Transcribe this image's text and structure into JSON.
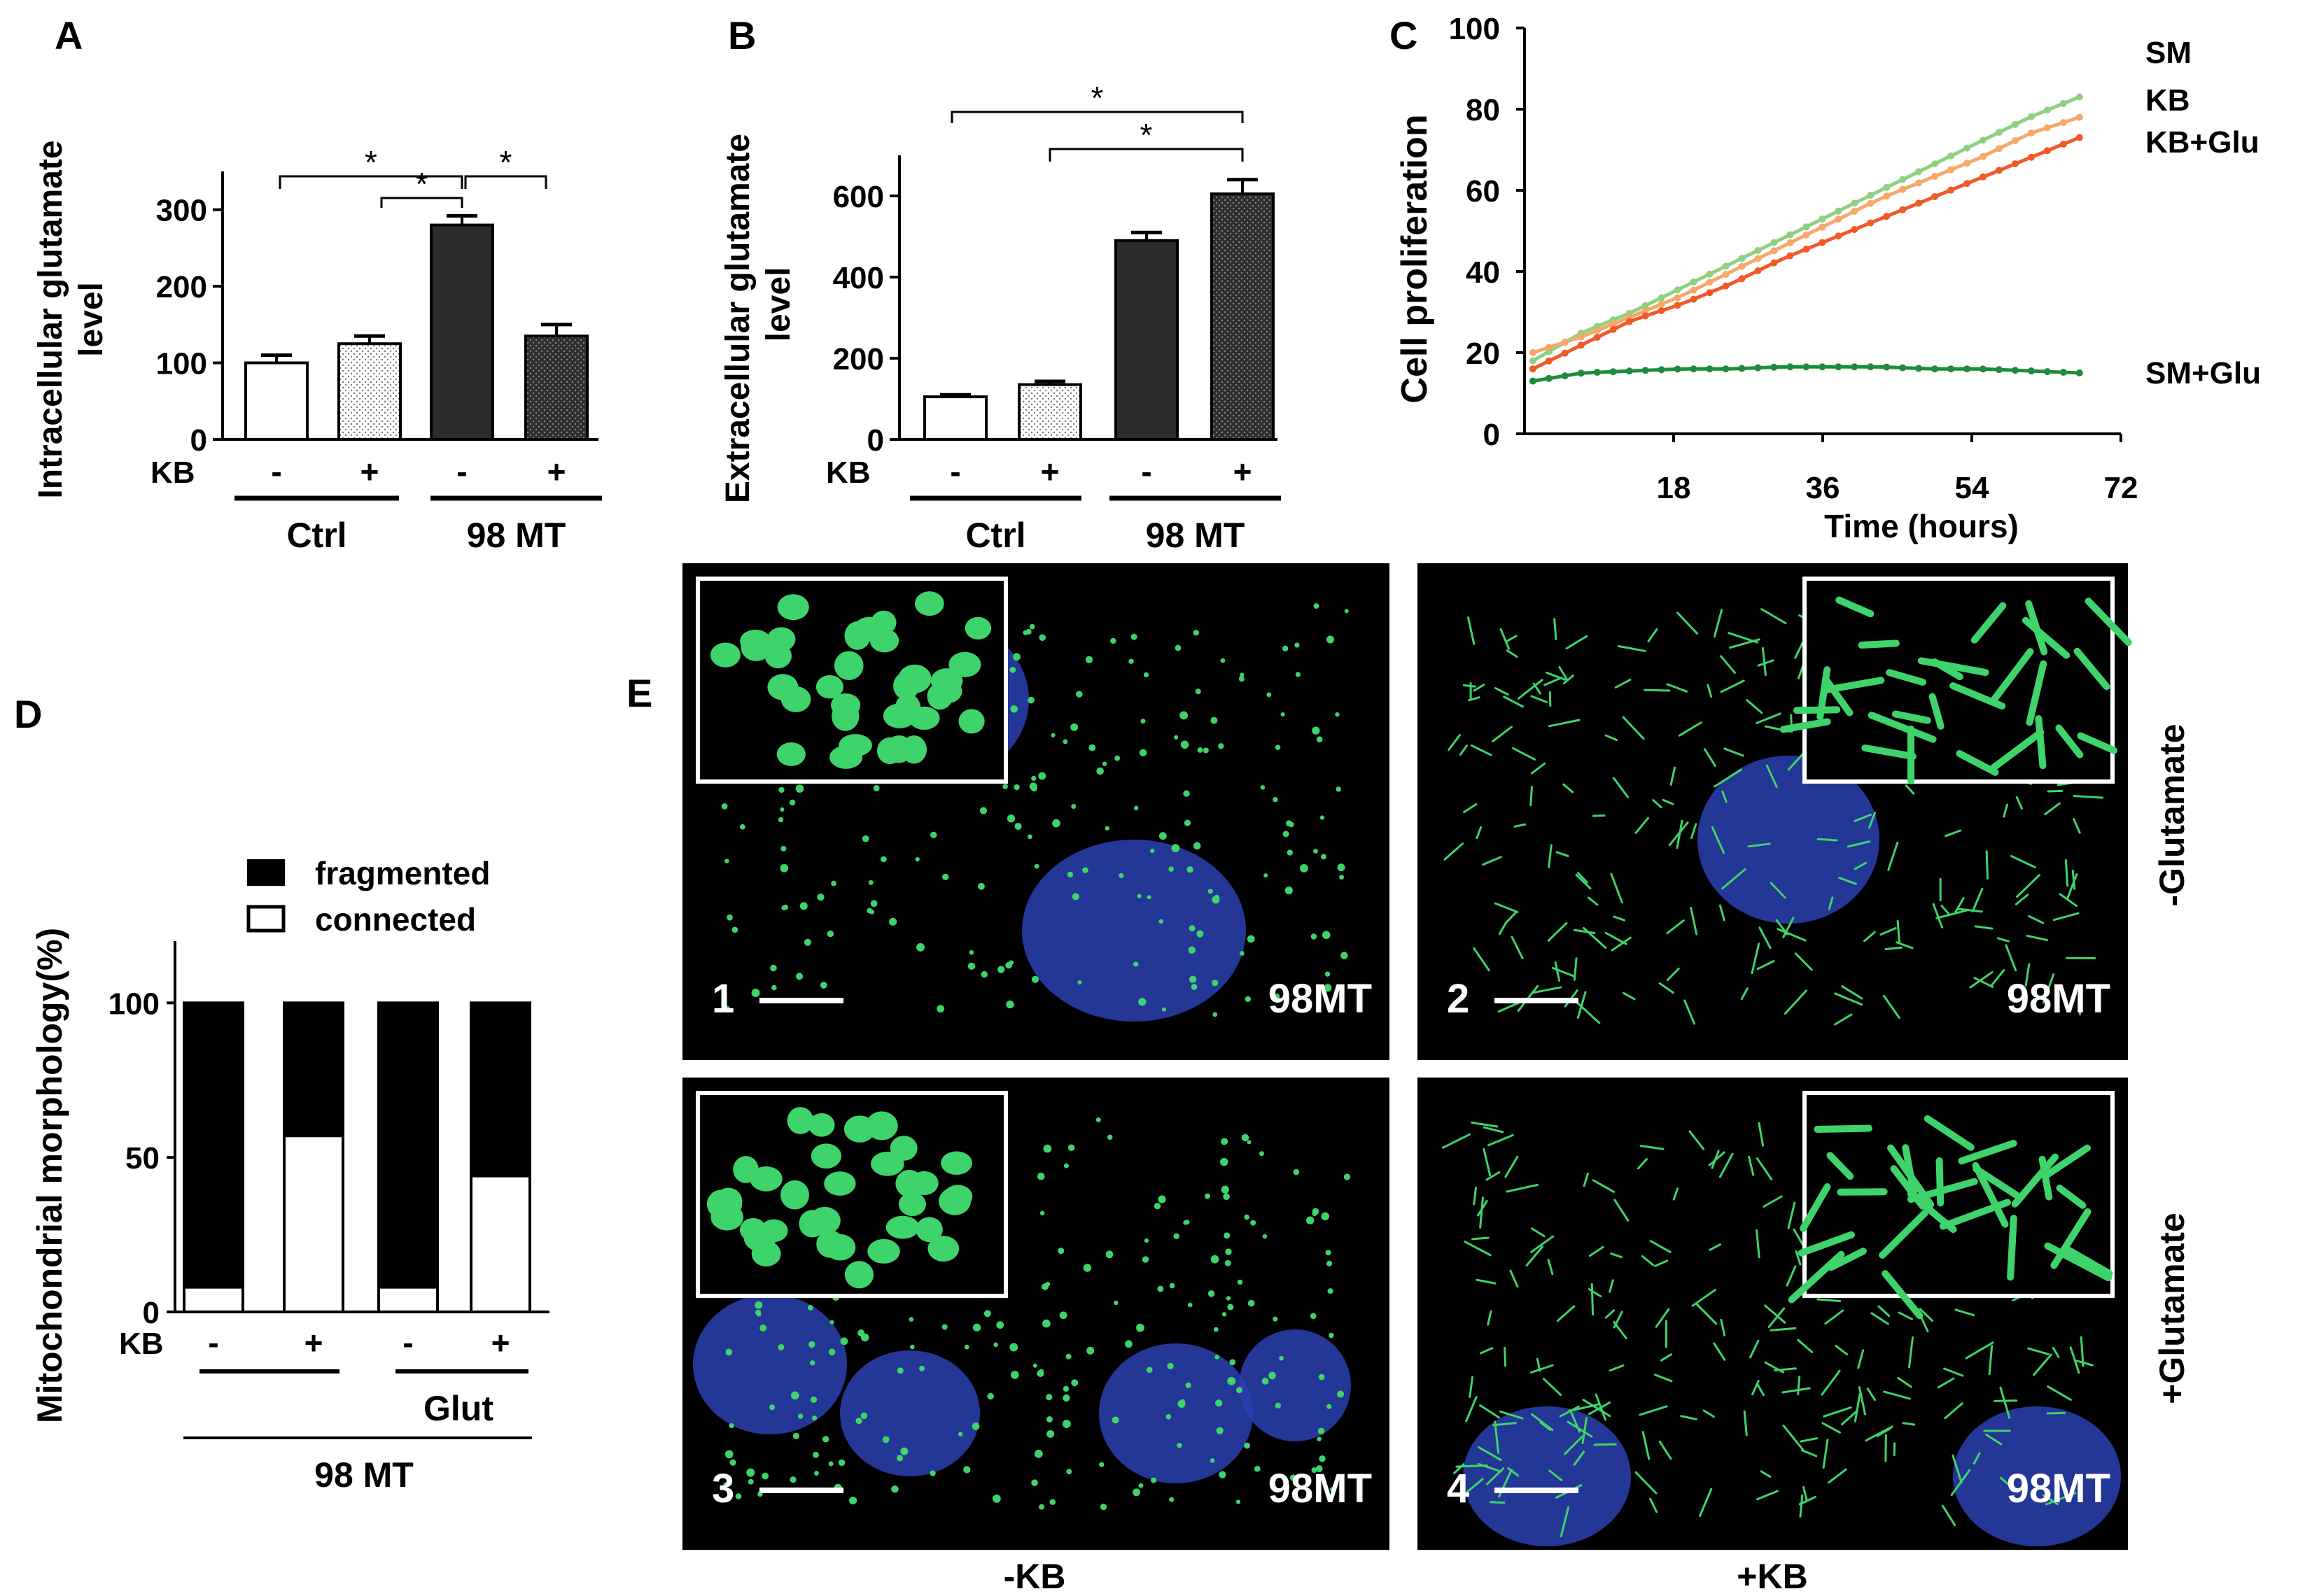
{
  "panels": {
    "A": {
      "letter": "A"
    },
    "B": {
      "letter": "B"
    },
    "C": {
      "letter": "C"
    },
    "D": {
      "letter": "D"
    },
    "E": {
      "letter": "E"
    }
  },
  "chart_data": [
    {
      "id": "A",
      "type": "bar",
      "ylabel": "Intracellular glutamate level",
      "yticks": [
        "0",
        "100",
        "200",
        "300"
      ],
      "ylim": [
        0,
        350
      ],
      "kb_label": "KB",
      "kb_signs": [
        "-",
        "+",
        "-",
        "+"
      ],
      "groups": [
        "Ctrl",
        "98 MT"
      ],
      "values": [
        100,
        125,
        280,
        135
      ],
      "errors": [
        10,
        10,
        12,
        15
      ],
      "significance": [
        "*",
        "*",
        "*"
      ]
    },
    {
      "id": "B",
      "type": "bar",
      "ylabel": "Extracellular glutamate level",
      "yticks": [
        "0",
        "200",
        "400",
        "600"
      ],
      "ylim": [
        0,
        700
      ],
      "kb_label": "KB",
      "kb_signs": [
        "-",
        "+",
        "-",
        "+"
      ],
      "groups": [
        "Ctrl",
        "98 MT"
      ],
      "values": [
        105,
        135,
        490,
        605
      ],
      "errors": [
        5,
        8,
        20,
        35
      ],
      "significance": [
        "*",
        "*"
      ]
    },
    {
      "id": "C",
      "type": "line",
      "ylabel": "Cell proliferation",
      "xlabel": "Time (hours)",
      "yticks": [
        "0",
        "20",
        "40",
        "60",
        "80",
        "100"
      ],
      "xticks": [
        "18",
        "36",
        "54",
        "72"
      ],
      "ylim": [
        0,
        100
      ],
      "xlim": [
        0,
        72
      ],
      "x": [
        0,
        6,
        12,
        18,
        24,
        30,
        36,
        42,
        48,
        54,
        60,
        66
      ],
      "series": [
        {
          "name": "SM",
          "color": "#8fd07f",
          "values": [
            18,
            25,
            30,
            36,
            42,
            48,
            54,
            60,
            66,
            72,
            78,
            83
          ]
        },
        {
          "name": "KB",
          "color": "#f5a86a",
          "values": [
            20,
            24,
            29,
            34,
            40,
            46,
            52,
            58,
            63,
            68,
            74,
            78
          ]
        },
        {
          "name": "KB+Glu",
          "color": "#f05a28",
          "values": [
            16,
            22,
            28,
            32,
            37,
            43,
            48,
            53,
            58,
            63,
            68,
            73
          ]
        },
        {
          "name": "SM+Glu",
          "color": "#1e8c3a",
          "values": [
            13,
            15,
            15.5,
            16,
            16,
            16.5,
            16.5,
            16.5,
            16,
            16,
            15.5,
            15
          ]
        }
      ]
    },
    {
      "id": "D",
      "type": "bar",
      "ylabel": "Mitochondrial morphology(%)",
      "yticks": [
        "0",
        "50",
        "100"
      ],
      "ylim": [
        0,
        120
      ],
      "legend": [
        "fragmented",
        "connected"
      ],
      "kb_label": "KB",
      "kb_signs": [
        "-",
        "+",
        "-",
        "+"
      ],
      "glut_label": "Glut",
      "group_label": "98 MT",
      "connected": [
        8,
        57,
        8,
        44
      ],
      "fragmented": [
        92,
        43,
        92,
        56
      ]
    }
  ],
  "micrographs": {
    "row_labels": [
      "-Glutamate",
      "+Glutamate"
    ],
    "col_labels": [
      "-KB",
      "+KB"
    ],
    "images": [
      {
        "number": "1",
        "label": "98MT"
      },
      {
        "number": "2",
        "label": "98MT"
      },
      {
        "number": "3",
        "label": "98MT"
      },
      {
        "number": "4",
        "label": "98MT"
      }
    ]
  },
  "colors": {
    "bar_dark": "#2b2b2b",
    "bar_dot": "#3c3c3c",
    "mito_green": "#3fd36b",
    "nucleus_blue": "#2a3fb0"
  }
}
